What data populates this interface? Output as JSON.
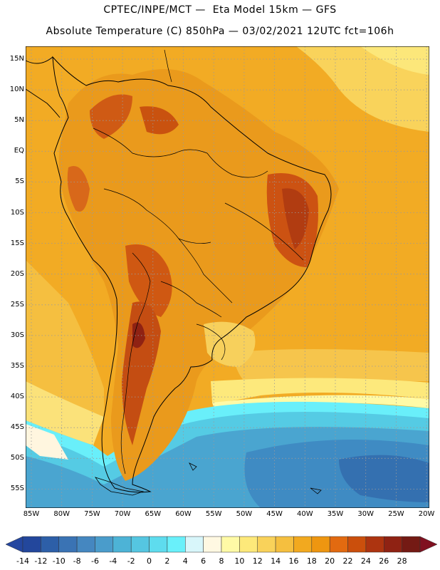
{
  "header": {
    "line1": "CPTEC/INPE/MCT —  Eta Model 15km — GFS",
    "line2": "Absolute Temperature (C) 850hPa — 03/02/2021 12UTC fct=106h"
  },
  "map": {
    "lat_labels": [
      "15N",
      "10N",
      "5N",
      "EQ",
      "5S",
      "10S",
      "15S",
      "20S",
      "25S",
      "30S",
      "35S",
      "40S",
      "45S",
      "50S",
      "55S"
    ],
    "lon_labels": [
      "85W",
      "80W",
      "75W",
      "70W",
      "65W",
      "60W",
      "55W",
      "50W",
      "45W",
      "40W",
      "35W",
      "30W",
      "25W",
      "20W"
    ]
  },
  "legend": {
    "labels": [
      "-14",
      "-12",
      "-10",
      "-8",
      "-6",
      "-4",
      "-2",
      "0",
      "2",
      "4",
      "6",
      "8",
      "10",
      "12",
      "14",
      "16",
      "18",
      "20",
      "22",
      "24",
      "26",
      "28"
    ],
    "colors": [
      "#23479c",
      "#2d5fa8",
      "#3a73b4",
      "#4587c0",
      "#4a9ccb",
      "#4db3d6",
      "#55c6e1",
      "#5edcee",
      "#69f0fa",
      "#d8f6fa",
      "#fff8e2",
      "#fffaa6",
      "#fde97a",
      "#f9d25a",
      "#f5bf3f",
      "#f2a91f",
      "#ee9610",
      "#e26a10",
      "#cb4f0c",
      "#ad3410",
      "#8f2213",
      "#741a14"
    ],
    "low_color": "#2446a0",
    "high_color": "#801020"
  }
}
